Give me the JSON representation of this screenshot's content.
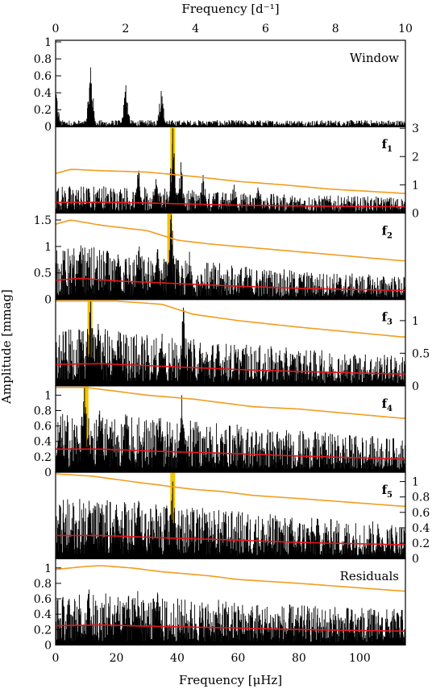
{
  "figure": {
    "top_axis_label": "Frequency [d⁻¹]",
    "bottom_axis_label": "Frequency [μHz]",
    "y_axis_label": "Amplitude [mmag]",
    "top_ticks": [
      "0",
      "2",
      "4",
      "6",
      "8",
      "10"
    ],
    "bottom_ticks": [
      "0",
      "20",
      "40",
      "60",
      "80",
      "100"
    ]
  },
  "colors": {
    "orange": "#f39c1e",
    "red": "#e8151b",
    "highlight": "#f5c400",
    "data": "#000000"
  },
  "chart_data": [
    {
      "type": "line",
      "panel_label": "Window",
      "ylim": [
        0,
        1.0
      ],
      "yticks": [
        "1",
        "0.8",
        "0.6",
        "0.4",
        "0.2",
        "0"
      ],
      "ytick_side": "left",
      "peaks_uHz": [
        [
          0.2,
          0.38
        ],
        [
          11.5,
          0.7
        ],
        [
          23.1,
          0.49
        ],
        [
          34.7,
          0.42
        ]
      ],
      "noise_level": 0.03,
      "orange_curve": null,
      "red_curve": null,
      "highlight_uHz": null
    },
    {
      "type": "line",
      "panel_label": "f",
      "panel_label_sub": "1",
      "ylim": [
        0,
        3.0
      ],
      "yticks": [
        "3",
        "2",
        "1",
        "0"
      ],
      "ytick_side": "right",
      "peaks_uHz": [
        [
          38.5,
          3.0
        ],
        [
          27.3,
          1.5
        ],
        [
          33.0,
          1.2
        ],
        [
          41.2,
          1.8
        ],
        [
          48.5,
          1.35
        ],
        [
          58.7,
          1.0
        ],
        [
          66.5,
          0.9
        ],
        [
          14.0,
          0.8
        ]
      ],
      "noise_level": 0.18,
      "orange_curve": [
        [
          0,
          1.4
        ],
        [
          5,
          1.55
        ],
        [
          15,
          1.5
        ],
        [
          30,
          1.45
        ],
        [
          45,
          1.3
        ],
        [
          60,
          1.12
        ],
        [
          75,
          1.0
        ],
        [
          90,
          0.85
        ],
        [
          114,
          0.7
        ]
      ],
      "red_curve": [
        [
          0,
          0.38
        ],
        [
          20,
          0.38
        ],
        [
          40,
          0.33
        ],
        [
          60,
          0.28
        ],
        [
          80,
          0.25
        ],
        [
          114,
          0.22
        ]
      ],
      "highlight_uHz": 38.5
    },
    {
      "type": "line",
      "panel_label": "f",
      "panel_label_sub": "2",
      "ylim": [
        0,
        1.6
      ],
      "yticks": [
        "1.5",
        "1",
        "0.5",
        "0"
      ],
      "ytick_side": "left",
      "peaks_uHz": [
        [
          38.0,
          1.6
        ],
        [
          27.5,
          1.0
        ],
        [
          33.5,
          0.95
        ],
        [
          44.0,
          0.9
        ],
        [
          20.5,
          0.85
        ],
        [
          8.0,
          0.9
        ]
      ],
      "noise_level": 0.25,
      "orange_curve": [
        [
          0,
          1.42
        ],
        [
          5,
          1.5
        ],
        [
          15,
          1.4
        ],
        [
          30,
          1.3
        ],
        [
          40,
          1.12
        ],
        [
          50,
          1.05
        ],
        [
          70,
          0.95
        ],
        [
          90,
          0.85
        ],
        [
          114,
          0.73
        ]
      ],
      "red_curve": [
        [
          0,
          0.36
        ],
        [
          8,
          0.4
        ],
        [
          20,
          0.35
        ],
        [
          40,
          0.3
        ],
        [
          60,
          0.25
        ],
        [
          80,
          0.21
        ],
        [
          114,
          0.17
        ]
      ],
      "highlight_uHz": 37.5
    },
    {
      "type": "line",
      "panel_label": "f",
      "panel_label_sub": "3",
      "ylim": [
        0,
        1.3
      ],
      "yticks": [
        "1",
        "0.5",
        "0"
      ],
      "ytick_side": "right",
      "peaks_uHz": [
        [
          11.5,
          1.3
        ],
        [
          42.0,
          1.2
        ],
        [
          14.0,
          0.95
        ],
        [
          35.0,
          0.8
        ],
        [
          20.5,
          0.7
        ]
      ],
      "noise_level": 0.2,
      "orange_curve": [
        [
          0,
          1.35
        ],
        [
          10,
          1.35
        ],
        [
          20,
          1.3
        ],
        [
          35,
          1.25
        ],
        [
          45,
          1.1
        ],
        [
          60,
          1.0
        ],
        [
          80,
          0.9
        ],
        [
          114,
          0.75
        ]
      ],
      "red_curve": [
        [
          0,
          0.33
        ],
        [
          15,
          0.34
        ],
        [
          35,
          0.3
        ],
        [
          60,
          0.25
        ],
        [
          80,
          0.22
        ],
        [
          114,
          0.18
        ]
      ],
      "highlight_uHz": 11.3
    },
    {
      "type": "line",
      "panel_label": "f",
      "panel_label_sub": "4",
      "ylim": [
        0,
        1.1
      ],
      "yticks": [
        "1",
        "0.8",
        "0.6",
        "0.4",
        "0.2",
        "0"
      ],
      "ytick_side": "left",
      "peaks_uHz": [
        [
          9.5,
          1.1
        ],
        [
          41.5,
          1.0
        ],
        [
          14.5,
          0.8
        ],
        [
          23.0,
          0.75
        ],
        [
          34.0,
          0.7
        ]
      ],
      "noise_level": 0.2,
      "orange_curve": [
        [
          0,
          1.2
        ],
        [
          10,
          1.1
        ],
        [
          20,
          1.05
        ],
        [
          30,
          1.0
        ],
        [
          45,
          0.95
        ],
        [
          55,
          0.9
        ],
        [
          65,
          0.85
        ],
        [
          80,
          0.82
        ],
        [
          114,
          0.7
        ]
      ],
      "red_curve": [
        [
          0,
          0.3
        ],
        [
          15,
          0.3
        ],
        [
          35,
          0.27
        ],
        [
          60,
          0.24
        ],
        [
          80,
          0.21
        ],
        [
          114,
          0.17
        ]
      ],
      "highlight_uHz": 10.0
    },
    {
      "type": "line",
      "panel_label": "f",
      "panel_label_sub": "5",
      "ylim": [
        0,
        1.1
      ],
      "yticks": [
        "1",
        "0.8",
        "0.6",
        "0.4",
        "0.2",
        "0"
      ],
      "ytick_side": "right",
      "peaks_uHz": [
        [
          38.5,
          1.0
        ],
        [
          27.3,
          0.75
        ],
        [
          11.0,
          0.75
        ],
        [
          20.0,
          0.7
        ],
        [
          33.0,
          0.7
        ]
      ],
      "noise_level": 0.2,
      "orange_curve": [
        [
          0,
          1.1
        ],
        [
          12,
          1.07
        ],
        [
          25,
          1.0
        ],
        [
          35,
          0.95
        ],
        [
          45,
          0.9
        ],
        [
          55,
          0.87
        ],
        [
          65,
          0.82
        ],
        [
          80,
          0.78
        ],
        [
          114,
          0.68
        ]
      ],
      "red_curve": [
        [
          0,
          0.3
        ],
        [
          15,
          0.3
        ],
        [
          35,
          0.27
        ],
        [
          60,
          0.24
        ],
        [
          80,
          0.21
        ],
        [
          114,
          0.18
        ]
      ],
      "highlight_uHz": 38.5
    },
    {
      "type": "line",
      "panel_label": "Residuals",
      "ylim": [
        0,
        1.1
      ],
      "yticks": [
        "1",
        "0.8",
        "0.6",
        "0.4",
        "0.2",
        "0"
      ],
      "ytick_side": "left",
      "peaks_uHz": [
        [
          11.0,
          0.72
        ],
        [
          27.0,
          0.7
        ],
        [
          33.5,
          0.68
        ],
        [
          20.5,
          0.62
        ]
      ],
      "noise_level": 0.2,
      "orange_curve": [
        [
          0,
          0.98
        ],
        [
          10,
          1.02
        ],
        [
          15,
          1.03
        ],
        [
          25,
          1.0
        ],
        [
          35,
          0.95
        ],
        [
          50,
          0.9
        ],
        [
          60,
          0.85
        ],
        [
          80,
          0.8
        ],
        [
          114,
          0.7
        ]
      ],
      "red_curve": [
        [
          0,
          0.25
        ],
        [
          15,
          0.26
        ],
        [
          35,
          0.24
        ],
        [
          60,
          0.22
        ],
        [
          80,
          0.2
        ],
        [
          114,
          0.18
        ]
      ],
      "highlight_uHz": null
    }
  ]
}
